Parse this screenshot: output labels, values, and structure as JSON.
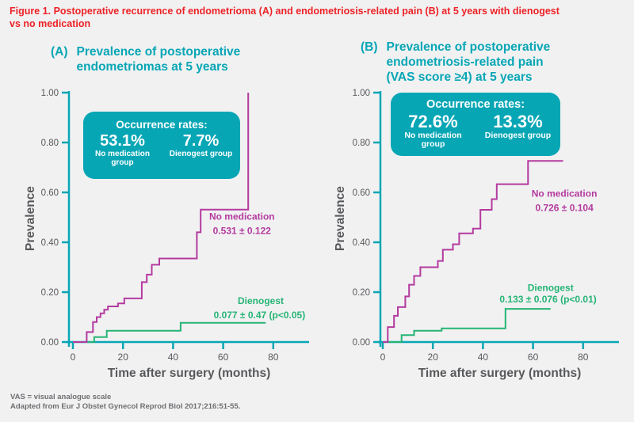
{
  "title": {
    "line1": "Figure 1. Postoperative recurrence of endometrioma (A) and endometriosis-related pain (B) at 5 years with dienogest",
    "line2": "vs no medication"
  },
  "footnotes": [
    "VAS = visual analogue scale",
    "Adapted from Eur J Obstet Gynecol Reprod Biol 2017;216:51-55."
  ],
  "colors": {
    "accent_teal": "#07a6b5",
    "no_medication_magenta": "#b43a9e",
    "dienogest_green": "#25b474",
    "title_red": "#ee2226",
    "axis_text_gray": "#58595b",
    "background": "#f1f1f2"
  },
  "chart_data": [
    {
      "type": "line",
      "panel_label": "(A)",
      "title_lines": [
        "Prevalence of postoperative",
        "endometriomas at 5 years"
      ],
      "xlabel": "Time after surgery (months)",
      "ylabel": "Prevalence",
      "xlim": [
        0,
        94.5
      ],
      "ylim": [
        0,
        1.0
      ],
      "xticks": [
        0,
        20,
        40,
        60,
        80
      ],
      "yticks": [
        "0.00",
        "0.20",
        "0.40",
        "0.60",
        "0.80",
        "1.00"
      ],
      "grid": false,
      "occurrence_box": {
        "heading": "Occurrence rates:",
        "entries": [
          {
            "value": "53.1%",
            "label": "No medication group"
          },
          {
            "value": "7.7%",
            "label": "Dienogest group"
          }
        ]
      },
      "series": [
        {
          "name": "No medication",
          "annotation": "0.531 ± 0.122",
          "color": "#b43a9e",
          "steps": [
            [
              0,
              0
            ],
            [
              5.5,
              0.04
            ],
            [
              8,
              0.08
            ],
            [
              9.5,
              0.1
            ],
            [
              11,
              0.115
            ],
            [
              12.5,
              0.13
            ],
            [
              14,
              0.143
            ],
            [
              18,
              0.155
            ],
            [
              20.5,
              0.175
            ],
            [
              27.5,
              0.24
            ],
            [
              29.5,
              0.27
            ],
            [
              31.5,
              0.31
            ],
            [
              34.5,
              0.335
            ],
            [
              49.5,
              0.44
            ],
            [
              51,
              0.531
            ],
            [
              70,
              1.0
            ]
          ],
          "name_pos": [
            67.5,
            0.49
          ],
          "annotation_pos": [
            67.5,
            0.433
          ]
        },
        {
          "name": "Dienogest",
          "annotation": "0.077 ± 0.47 (p<0.05)",
          "color": "#25b474",
          "steps": [
            [
              0,
              0
            ],
            [
              8.5,
              0.02
            ],
            [
              13.5,
              0.045
            ],
            [
              43,
              0.077
            ],
            [
              77,
              0.077
            ]
          ],
          "name_pos": [
            75,
            0.152
          ],
          "annotation_pos": [
            74.5,
            0.095
          ]
        }
      ]
    },
    {
      "type": "line",
      "panel_label": "(B)",
      "title_lines": [
        "Prevalence of postoperative",
        "endometriosis-related pain",
        "(VAS score ≥4) at 5 years"
      ],
      "xlabel": "Time after surgery (months)",
      "ylabel": "Prevalence",
      "xlim": [
        0,
        94.5
      ],
      "ylim": [
        0,
        1.0
      ],
      "xticks": [
        0,
        20,
        40,
        60,
        80
      ],
      "yticks": [
        "0.00",
        "0.20",
        "0.40",
        "0.60",
        "0.80",
        "1.00"
      ],
      "grid": false,
      "occurrence_box": {
        "heading": "Occurrence rates:",
        "entries": [
          {
            "value": "72.6%",
            "label": "No medication group"
          },
          {
            "value": "13.3%",
            "label": "Dienogest group"
          }
        ]
      },
      "series": [
        {
          "name": "No medication",
          "annotation": "0.726 ± 0.104",
          "color": "#b43a9e",
          "steps": [
            [
              0,
              0
            ],
            [
              2,
              0.06
            ],
            [
              4.5,
              0.105
            ],
            [
              6,
              0.14
            ],
            [
              9,
              0.183
            ],
            [
              10.5,
              0.23
            ],
            [
              12.5,
              0.265
            ],
            [
              15,
              0.3
            ],
            [
              22,
              0.325
            ],
            [
              24,
              0.37
            ],
            [
              28,
              0.392
            ],
            [
              30.5,
              0.436
            ],
            [
              36,
              0.455
            ],
            [
              39,
              0.53
            ],
            [
              43.5,
              0.573
            ],
            [
              45.5,
              0.633
            ],
            [
              58,
              0.726
            ],
            [
              72,
              0.726
            ]
          ],
          "name_pos": [
            72.5,
            0.582
          ],
          "annotation_pos": [
            72.5,
            0.525
          ]
        },
        {
          "name": "Dienogest",
          "annotation": "0.133 ± 0.076 (p<0.01)",
          "color": "#25b474",
          "steps": [
            [
              0,
              0
            ],
            [
              7.5,
              0.028
            ],
            [
              12.5,
              0.045
            ],
            [
              23.5,
              0.055
            ],
            [
              49,
              0.133
            ],
            [
              67,
              0.133
            ]
          ],
          "name_pos": [
            67,
            0.205
          ],
          "annotation_pos": [
            66,
            0.158
          ]
        }
      ]
    }
  ]
}
